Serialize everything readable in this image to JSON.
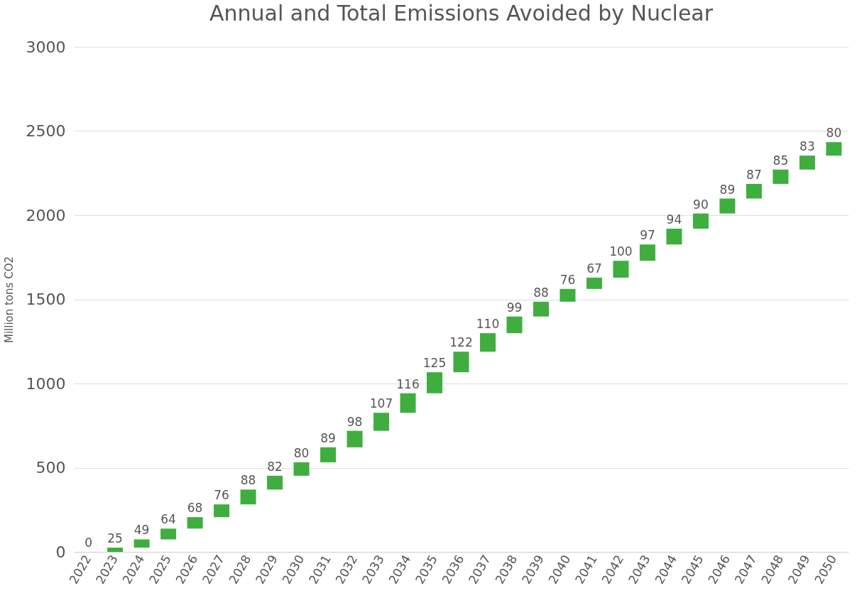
{
  "chart_data": {
    "type": "bar",
    "title": "Annual and Total Emissions Avoided by Nuclear",
    "ylabel": "Million tons CO2",
    "categories": [
      "2022",
      "2023",
      "2024",
      "2025",
      "2026",
      "2027",
      "2028",
      "2029",
      "2030",
      "2031",
      "2032",
      "2033",
      "2034",
      "2035",
      "2036",
      "2037",
      "2038",
      "2039",
      "2040",
      "2041",
      "2042",
      "2043",
      "2044",
      "2045",
      "2046",
      "2047",
      "2048",
      "2049",
      "2050"
    ],
    "values": [
      0,
      25,
      49,
      64,
      68,
      76,
      88,
      82,
      80,
      89,
      98,
      107,
      116,
      125,
      122,
      110,
      99,
      88,
      76,
      67,
      100,
      97,
      94,
      90,
      89,
      87,
      85,
      83,
      80
    ],
    "base": [
      null,
      0,
      25,
      74,
      138,
      206,
      282,
      370,
      452,
      532,
      621,
      719,
      826,
      942,
      1067,
      1189,
      1299,
      1398,
      1486,
      1562,
      1629,
      1729,
      1826,
      1920,
      2010,
      2099,
      2186,
      2271,
      2354
    ],
    "color": "#3fae3f",
    "ylim": [
      0,
      3000
    ],
    "yticks": [
      0,
      500,
      1000,
      1500,
      2000,
      2500,
      3000
    ],
    "grid": "y",
    "data_labels": true
  }
}
